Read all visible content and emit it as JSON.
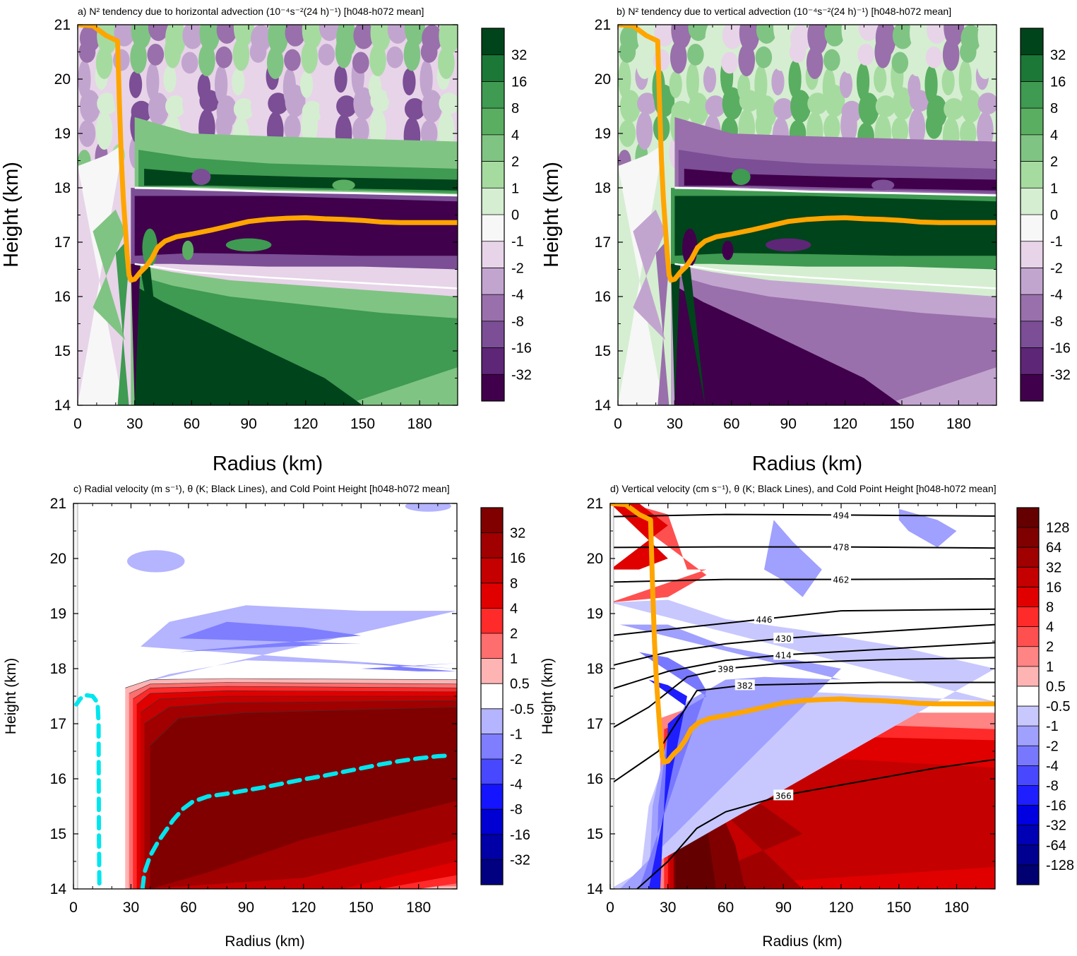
{
  "chart_data": [
    {
      "id": "a",
      "type": "heatmap",
      "title": "a) N² tendency due to horizontal advection (10⁻⁴s⁻²(24 h)⁻¹) [h048-h072 mean]",
      "xlabel": "Radius (km)",
      "ylabel": "Height (km)",
      "xlim": [
        0,
        200
      ],
      "ylim": [
        14,
        21
      ],
      "xticks": [
        0,
        30,
        60,
        90,
        120,
        150,
        180
      ],
      "yticks": [
        14,
        15,
        16,
        17,
        18,
        19,
        20,
        21
      ],
      "colorbar_labels": [
        "32",
        "16",
        "8",
        "4",
        "2",
        "1",
        "0",
        "-1",
        "-2",
        "-4",
        "-8",
        "-16",
        "-32"
      ],
      "colorbar_colors": [
        "#00441b",
        "#1b7837",
        "#3f9a52",
        "#5aae61",
        "#80c483",
        "#a6dba0",
        "#d5eed1",
        "#f7f7f7",
        "#e7d4e8",
        "#c2a5cf",
        "#9970ab",
        "#7b4e96",
        "#5e2677",
        "#40004b"
      ],
      "overlay_line": {
        "name": "Cold Point Height",
        "color": "#ffa500",
        "points": [
          [
            0,
            21.0
          ],
          [
            8,
            20.98
          ],
          [
            15,
            20.8
          ],
          [
            21,
            20.7
          ],
          [
            22,
            19.5
          ],
          [
            23,
            18.5
          ],
          [
            24,
            17.8
          ],
          [
            25,
            17.3
          ],
          [
            26,
            16.8
          ],
          [
            27,
            16.4
          ],
          [
            28,
            16.3
          ],
          [
            30,
            16.32
          ],
          [
            33,
            16.45
          ],
          [
            36,
            16.55
          ],
          [
            39,
            16.7
          ],
          [
            42,
            16.9
          ],
          [
            46,
            17.02
          ],
          [
            52,
            17.1
          ],
          [
            60,
            17.15
          ],
          [
            70,
            17.22
          ],
          [
            80,
            17.3
          ],
          [
            90,
            17.38
          ],
          [
            100,
            17.42
          ],
          [
            110,
            17.44
          ],
          [
            120,
            17.45
          ],
          [
            130,
            17.43
          ],
          [
            140,
            17.42
          ],
          [
            150,
            17.4
          ],
          [
            160,
            17.37
          ],
          [
            170,
            17.36
          ],
          [
            180,
            17.36
          ],
          [
            190,
            17.36
          ],
          [
            200,
            17.36
          ]
        ]
      }
    },
    {
      "id": "b",
      "type": "heatmap",
      "title": "b) N² tendency due to vertical advection (10⁻⁴s⁻²(24 h)⁻¹) [h048-h072 mean]",
      "xlabel": "Radius (km)",
      "ylabel": "Height (km)",
      "xlim": [
        0,
        200
      ],
      "ylim": [
        14,
        21
      ],
      "xticks": [
        0,
        30,
        60,
        90,
        120,
        150,
        180
      ],
      "yticks": [
        14,
        15,
        16,
        17,
        18,
        19,
        20,
        21
      ],
      "colorbar_labels": [
        "32",
        "16",
        "8",
        "4",
        "2",
        "1",
        "0",
        "-1",
        "-2",
        "-4",
        "-8",
        "-16",
        "-32"
      ],
      "colorbar_colors": [
        "#00441b",
        "#1b7837",
        "#3f9a52",
        "#5aae61",
        "#80c483",
        "#a6dba0",
        "#d5eed1",
        "#f7f7f7",
        "#e7d4e8",
        "#c2a5cf",
        "#9970ab",
        "#7b4e96",
        "#5e2677",
        "#40004b"
      ],
      "overlay_line": {
        "name": "Cold Point Height",
        "color": "#ffa500",
        "points": [
          [
            0,
            21.0
          ],
          [
            8,
            20.98
          ],
          [
            15,
            20.8
          ],
          [
            21,
            20.7
          ],
          [
            22,
            19.5
          ],
          [
            23,
            18.5
          ],
          [
            24,
            17.8
          ],
          [
            25,
            17.3
          ],
          [
            26,
            16.8
          ],
          [
            27,
            16.4
          ],
          [
            28,
            16.3
          ],
          [
            30,
            16.32
          ],
          [
            33,
            16.45
          ],
          [
            36,
            16.55
          ],
          [
            39,
            16.7
          ],
          [
            42,
            16.9
          ],
          [
            46,
            17.02
          ],
          [
            52,
            17.1
          ],
          [
            60,
            17.15
          ],
          [
            70,
            17.22
          ],
          [
            80,
            17.3
          ],
          [
            90,
            17.38
          ],
          [
            100,
            17.42
          ],
          [
            110,
            17.44
          ],
          [
            120,
            17.45
          ],
          [
            130,
            17.43
          ],
          [
            140,
            17.42
          ],
          [
            150,
            17.4
          ],
          [
            160,
            17.37
          ],
          [
            170,
            17.36
          ],
          [
            180,
            17.36
          ],
          [
            190,
            17.36
          ],
          [
            200,
            17.36
          ]
        ]
      }
    },
    {
      "id": "c",
      "type": "heatmap",
      "title": "c) Radial velocity (m s⁻¹), θ (K; Black Lines), and Cold Point Height [h048-h072 mean]",
      "xlabel": "Radius (km)",
      "ylabel": "Height (km)",
      "xlim": [
        0,
        200
      ],
      "ylim": [
        14,
        21
      ],
      "xticks": [
        0,
        30,
        60,
        90,
        120,
        150,
        180
      ],
      "yticks": [
        14,
        15,
        16,
        17,
        18,
        19,
        20,
        21
      ],
      "colorbar_labels": [
        "32",
        "16",
        "8",
        "4",
        "2",
        "1",
        "0.5",
        "-0.5",
        "-1",
        "-2",
        "-4",
        "-8",
        "-16",
        "-32"
      ],
      "colorbar_colors": [
        "#800000",
        "#a00000",
        "#c40000",
        "#e00000",
        "#ff2a2a",
        "#ff6e6e",
        "#ffb4b4",
        "#ffffff",
        "#b4b4ff",
        "#7e7eff",
        "#4848ff",
        "#1414ff",
        "#0000d2",
        "#0000a6",
        "#000080"
      ],
      "overlay_line": {
        "name": "Cold Point Height",
        "color": "#00e5ee",
        "dashed": true,
        "points_left": [
          [
            13.5,
            14.1
          ],
          [
            13.3,
            15.0
          ],
          [
            13.2,
            16.0
          ],
          [
            13.1,
            17.0
          ],
          [
            12.6,
            17.38
          ],
          [
            10.0,
            17.5
          ],
          [
            6.0,
            17.52
          ],
          [
            3.5,
            17.45
          ],
          [
            1.5,
            17.35
          ]
        ],
        "points": [
          [
            36,
            14.0
          ],
          [
            37,
            14.3
          ],
          [
            40,
            14.6
          ],
          [
            44,
            14.85
          ],
          [
            48,
            15.05
          ],
          [
            52,
            15.25
          ],
          [
            57,
            15.45
          ],
          [
            62,
            15.58
          ],
          [
            70,
            15.68
          ],
          [
            80,
            15.73
          ],
          [
            90,
            15.79
          ],
          [
            100,
            15.85
          ],
          [
            110,
            15.92
          ],
          [
            120,
            15.99
          ],
          [
            130,
            16.05
          ],
          [
            140,
            16.12
          ],
          [
            150,
            16.19
          ],
          [
            160,
            16.26
          ],
          [
            170,
            16.32
          ],
          [
            180,
            16.37
          ],
          [
            190,
            16.41
          ],
          [
            196,
            16.42
          ]
        ]
      }
    },
    {
      "id": "d",
      "type": "heatmap",
      "title": "d) Vertical velocity (cm s⁻¹), θ (K; Black Lines), and Cold Point Height [h048-h072 mean]",
      "xlabel": "Radius (km)",
      "ylabel": "Height (km)",
      "xlim": [
        0,
        200
      ],
      "ylim": [
        14,
        21
      ],
      "xticks": [
        0,
        30,
        60,
        90,
        120,
        150,
        180
      ],
      "yticks": [
        14,
        15,
        16,
        17,
        18,
        19,
        20,
        21
      ],
      "colorbar_labels": [
        "128",
        "64",
        "32",
        "16",
        "8",
        "4",
        "2",
        "1",
        "0.5",
        "-0.5",
        "-1",
        "-2",
        "-4",
        "-8",
        "-16",
        "-32",
        "-64",
        "-128"
      ],
      "colorbar_colors": [
        "#650000",
        "#800000",
        "#a00000",
        "#c40000",
        "#e00000",
        "#ff2a2a",
        "#ff5050",
        "#ff8484",
        "#ffb4b4",
        "#ffffff",
        "#c8c8ff",
        "#a0a0ff",
        "#7878ff",
        "#4848ff",
        "#1e1eff",
        "#0000e0",
        "#0000b4",
        "#000090",
        "#000070"
      ],
      "theta_contours": [
        {
          "label": "494",
          "pts": [
            [
              0,
              20.76
            ],
            [
              60,
              20.8
            ],
            [
              120,
              20.79
            ],
            [
              200,
              20.77
            ]
          ]
        },
        {
          "label": "478",
          "pts": [
            [
              0,
              20.2
            ],
            [
              60,
              20.21
            ],
            [
              120,
              20.21
            ],
            [
              200,
              20.19
            ]
          ]
        },
        {
          "label": "462",
          "pts": [
            [
              0,
              19.57
            ],
            [
              60,
              19.62
            ],
            [
              120,
              19.62
            ],
            [
              200,
              19.63
            ]
          ]
        },
        {
          "label": "446",
          "pts": [
            [
              0,
              18.6
            ],
            [
              40,
              18.75
            ],
            [
              80,
              18.9
            ],
            [
              120,
              19.05
            ],
            [
              200,
              19.08
            ]
          ]
        },
        {
          "label": "430",
          "pts": [
            [
              0,
              18.05
            ],
            [
              30,
              18.3
            ],
            [
              60,
              18.45
            ],
            [
              90,
              18.55
            ],
            [
              140,
              18.67
            ],
            [
              200,
              18.8
            ]
          ]
        },
        {
          "label": "414",
          "pts": [
            [
              0,
              17.62
            ],
            [
              30,
              17.95
            ],
            [
              60,
              18.15
            ],
            [
              90,
              18.25
            ],
            [
              140,
              18.35
            ],
            [
              200,
              18.47
            ]
          ]
        },
        {
          "label": "398",
          "pts": [
            [
              0,
              16.9
            ],
            [
              20,
              17.3
            ],
            [
              40,
              17.85
            ],
            [
              60,
              18.0
            ],
            [
              90,
              18.1
            ],
            [
              140,
              18.16
            ],
            [
              200,
              18.2
            ]
          ]
        },
        {
          "label": "382",
          "pts": [
            [
              0,
              15.9
            ],
            [
              25,
              16.5
            ],
            [
              45,
              17.6
            ],
            [
              70,
              17.7
            ],
            [
              100,
              17.72
            ],
            [
              140,
              17.75
            ],
            [
              200,
              17.75
            ]
          ]
        },
        {
          "label": "366",
          "pts": [
            [
              14,
              14.0
            ],
            [
              30,
              14.5
            ],
            [
              45,
              15.1
            ],
            [
              60,
              15.4
            ],
            [
              90,
              15.7
            ],
            [
              130,
              15.95
            ],
            [
              170,
              16.2
            ],
            [
              200,
              16.35
            ]
          ]
        }
      ],
      "overlay_line": {
        "name": "Cold Point Height",
        "color": "#ffa500",
        "points": [
          [
            0,
            21.0
          ],
          [
            8,
            20.98
          ],
          [
            15,
            20.8
          ],
          [
            21,
            20.7
          ],
          [
            22,
            19.5
          ],
          [
            23,
            18.5
          ],
          [
            24,
            17.8
          ],
          [
            25,
            17.3
          ],
          [
            26,
            16.8
          ],
          [
            27,
            16.4
          ],
          [
            28,
            16.3
          ],
          [
            30,
            16.32
          ],
          [
            33,
            16.45
          ],
          [
            36,
            16.55
          ],
          [
            39,
            16.7
          ],
          [
            42,
            16.9
          ],
          [
            46,
            17.02
          ],
          [
            52,
            17.1
          ],
          [
            60,
            17.15
          ],
          [
            70,
            17.22
          ],
          [
            80,
            17.3
          ],
          [
            90,
            17.38
          ],
          [
            100,
            17.42
          ],
          [
            110,
            17.44
          ],
          [
            120,
            17.45
          ],
          [
            130,
            17.43
          ],
          [
            140,
            17.42
          ],
          [
            150,
            17.4
          ],
          [
            160,
            17.37
          ],
          [
            170,
            17.36
          ],
          [
            180,
            17.36
          ],
          [
            190,
            17.36
          ],
          [
            200,
            17.36
          ]
        ]
      }
    }
  ]
}
